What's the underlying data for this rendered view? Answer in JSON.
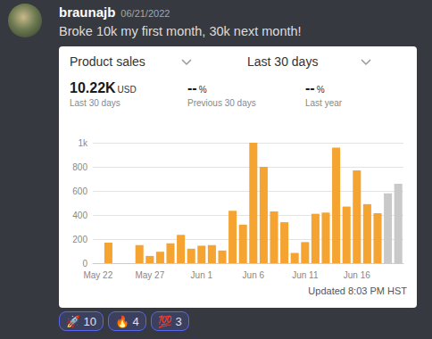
{
  "message": {
    "username": "braunajb",
    "date": "06/21/2022",
    "text": "Broke 10k my first month, 30k next month!"
  },
  "card": {
    "metric": "Product sales",
    "period": "Last 30 days",
    "stats": [
      {
        "value": "10.22K",
        "unit": "USD",
        "label": "Last 30 days"
      },
      {
        "value": "--",
        "unit": "%",
        "label": "Previous 30 days"
      },
      {
        "value": "--",
        "unit": "%",
        "label": "Last year"
      }
    ],
    "updated": "Updated 8:03 PM HST"
  },
  "chart_data": {
    "type": "bar",
    "categories": [
      "May 22",
      null,
      null,
      null,
      null,
      "May 27",
      null,
      null,
      null,
      null,
      "Jun 1",
      null,
      null,
      null,
      null,
      "Jun 6",
      null,
      null,
      null,
      null,
      "Jun 11",
      null,
      null,
      null,
      null,
      "Jun 16",
      null,
      null,
      null,
      null
    ],
    "values": [
      0,
      170,
      0,
      0,
      150,
      60,
      95,
      165,
      235,
      120,
      145,
      150,
      105,
      435,
      320,
      1000,
      800,
      430,
      340,
      85,
      175,
      410,
      420,
      960,
      470,
      770,
      490,
      415,
      580,
      660
    ],
    "colors": [
      "#f5a431",
      "#f5a431",
      "#f5a431",
      "#f5a431",
      "#f5a431",
      "#f5a431",
      "#f5a431",
      "#f5a431",
      "#f5a431",
      "#f5a431",
      "#f5a431",
      "#f5a431",
      "#f5a431",
      "#f5a431",
      "#f5a431",
      "#f5a431",
      "#f5a431",
      "#f5a431",
      "#f5a431",
      "#f5a431",
      "#f5a431",
      "#f5a431",
      "#f5a431",
      "#f5a431",
      "#f5a431",
      "#f5a431",
      "#f5a431",
      "#f5a431",
      "#c9c9c9",
      "#c9c9c9"
    ],
    "ylim": [
      0,
      1000
    ],
    "yticks": [
      0,
      200,
      400,
      600,
      800,
      {
        "value": 1000,
        "label": "1k"
      }
    ],
    "grid": true
  },
  "reactions": [
    {
      "emoji": "🚀",
      "count": 10
    },
    {
      "emoji": "🔥",
      "count": 4
    },
    {
      "emoji": "💯",
      "count": 3
    }
  ]
}
